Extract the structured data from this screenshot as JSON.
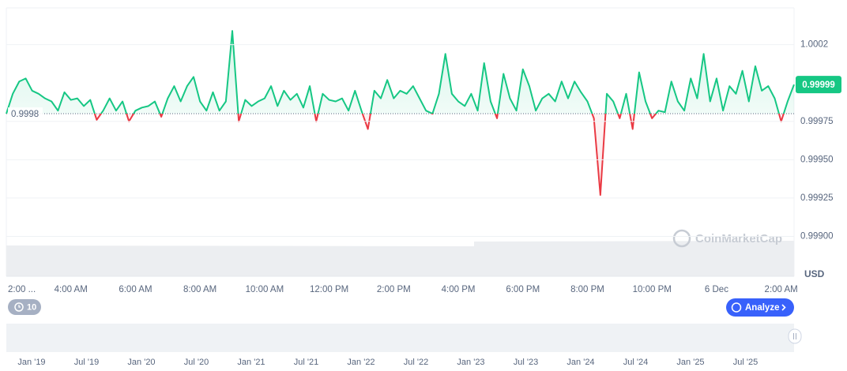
{
  "chart_data": {
    "type": "line",
    "currency": "USD",
    "watermark": "CoinMarketCap",
    "interval_badge": "10",
    "analyze_button": "Analyze",
    "baseline": 0.9998,
    "color_up": "#16c784",
    "color_down": "#ea3943",
    "grid": true,
    "ylim": [
      0.99874,
      1.00049
    ],
    "yticks": [
      {
        "value": 1.00025,
        "label": "1.0002"
      },
      0.99975,
      {
        "value": 0.9995,
        "label": "0.99950"
      },
      0.99925,
      {
        "value": 0.999,
        "label": "0.99900"
      }
    ],
    "categories": [
      "2:00 ...",
      null,
      null,
      null,
      null,
      null,
      null,
      null,
      null,
      null,
      "4:00 AM",
      null,
      null,
      null,
      null,
      null,
      null,
      null,
      null,
      null,
      "6:00 AM",
      null,
      null,
      null,
      null,
      null,
      null,
      null,
      null,
      null,
      "8:00 AM",
      null,
      null,
      null,
      null,
      null,
      null,
      null,
      null,
      null,
      "10:00 AM",
      null,
      null,
      null,
      null,
      null,
      null,
      null,
      null,
      null,
      "12:00 PM",
      null,
      null,
      null,
      null,
      null,
      null,
      null,
      null,
      null,
      "2:00 PM",
      null,
      null,
      null,
      null,
      null,
      null,
      null,
      null,
      null,
      "4:00 PM",
      null,
      null,
      null,
      null,
      null,
      null,
      null,
      null,
      null,
      "6:00 PM",
      null,
      null,
      null,
      null,
      null,
      null,
      null,
      null,
      null,
      "8:00 PM",
      null,
      null,
      null,
      null,
      null,
      null,
      null,
      null,
      null,
      "10:00 PM",
      null,
      null,
      null,
      null,
      null,
      null,
      null,
      null,
      null,
      "6 Dec",
      null,
      null,
      null,
      null,
      null,
      null,
      null,
      null,
      null,
      "2:00 AM",
      null,
      null
    ],
    "values": [
      0.9998,
      0.99993,
      1.00001,
      1.00003,
      0.99995,
      0.99993,
      0.9999,
      0.99988,
      0.99982,
      0.99994,
      0.99989,
      0.9999,
      0.99985,
      0.99989,
      0.99976,
      0.99982,
      0.9999,
      0.99982,
      0.99988,
      0.99975,
      0.99982,
      0.99984,
      0.99985,
      0.99988,
      0.99978,
      0.9999,
      0.99998,
      0.99988,
      0.99998,
      1.00004,
      0.99988,
      0.99982,
      0.99994,
      0.99982,
      0.99988,
      1.00034,
      0.99975,
      0.99989,
      0.99985,
      0.99988,
      0.9999,
      0.99998,
      0.99985,
      0.99995,
      0.99989,
      0.99993,
      0.99984,
      0.99998,
      0.99975,
      0.99993,
      0.99989,
      0.99988,
      0.9999,
      0.99982,
      0.99995,
      0.99982,
      0.9997,
      0.99995,
      0.9999,
      1.00002,
      0.9999,
      0.99995,
      0.99993,
      0.99998,
      0.9999,
      0.99982,
      0.9998,
      0.99993,
      1.00019,
      0.99993,
      0.99988,
      0.99985,
      0.99993,
      0.99982,
      1.00013,
      0.99988,
      0.99977,
      1.00006,
      0.9999,
      0.99982,
      1.00009,
      0.99998,
      0.99982,
      0.9999,
      0.99993,
      0.99988,
      1.00001,
      0.9999,
      1.00001,
      0.99994,
      0.99988,
      0.99977,
      0.99927,
      0.99993,
      0.99988,
      0.99977,
      0.99993,
      0.9997,
      1.00007,
      0.99988,
      0.99977,
      0.99982,
      0.99981,
      1.00001,
      0.99988,
      0.99982,
      1.00003,
      0.9999,
      1.00019,
      0.99988,
      1.00003,
      0.99982,
      0.99998,
      0.99993,
      1.00008,
      0.99988,
      1.00011,
      0.99995,
      0.99998,
      0.9999,
      0.99975,
      0.99988,
      0.99999
    ],
    "navigator_labels": [
      "Jan '19",
      "Jul '19",
      "Jan '20",
      "Jul '20",
      "Jan '21",
      "Jul '21",
      "Jan '22",
      "Jul '22",
      "Jan '23",
      "Jul '23",
      "Jan '24",
      "Jul '24",
      "Jan '25",
      "Jul '25"
    ]
  }
}
